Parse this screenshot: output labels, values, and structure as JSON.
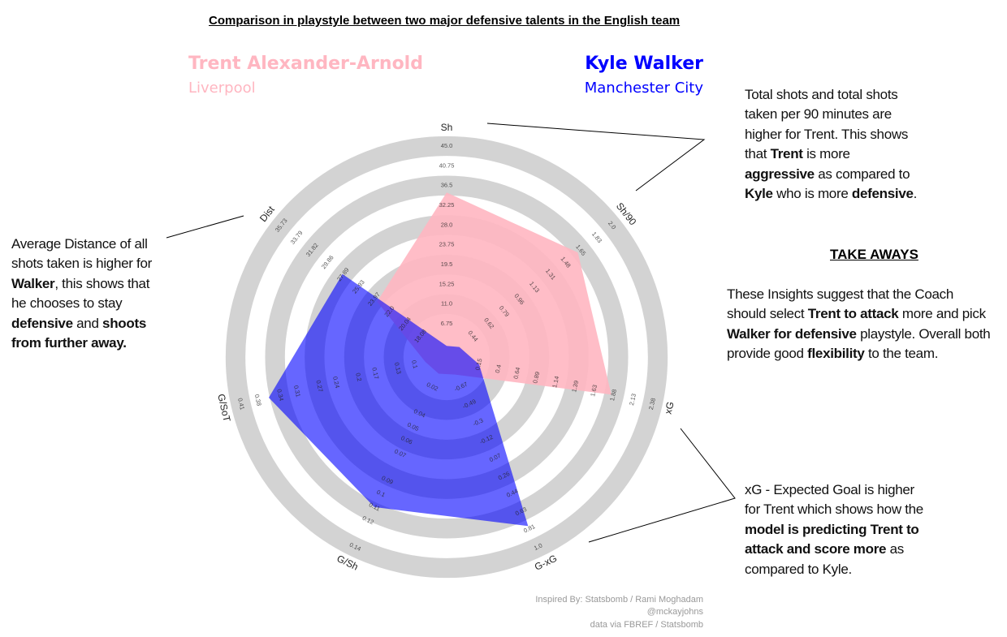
{
  "chart_data": {
    "type": "radar",
    "title": "Comparison in playstyle between two major defensive talents in the English team",
    "categories": [
      "Sh",
      "Sh/90",
      "xG",
      "G-xG",
      "G/Sh",
      "G/SoT",
      "Dist"
    ],
    "ticks": [
      [
        6.75,
        {
          "value": 11,
          "label": "11.0"
        },
        15.25,
        19.5,
        23.75,
        {
          "value": 28,
          "label": "28.0"
        },
        32.25,
        36.5,
        40.75,
        {
          "value": 45,
          "label": "45.0"
        }
      ],
      [
        0.44,
        0.62,
        0.79,
        0.96,
        1.13,
        1.31,
        1.48,
        1.65,
        1.83,
        {
          "value": 2,
          "label": "2.0"
        }
      ],
      [
        0.15,
        0.4,
        0.64,
        0.89,
        1.14,
        1.39,
        1.63,
        1.88,
        2.13,
        2.38
      ],
      [
        -0.67,
        -0.49,
        -0.3,
        -0.12,
        0.07,
        0.26,
        0.44,
        0.63,
        0.81,
        {
          "value": 1,
          "label": "1.0"
        }
      ],
      [
        0.02,
        0.04,
        0.05,
        0.06,
        0.07,
        0.09,
        0.1,
        0.11,
        0.12,
        0.14
      ],
      [
        0.1,
        0.13,
        0.17,
        0.2,
        0.24,
        0.27,
        0.31,
        0.34,
        0.38,
        0.41
      ],
      [
        18.08,
        20.04,
        {
          "value": 22,
          "label": "22.0"
        },
        23.97,
        25.93,
        27.89,
        29.86,
        31.82,
        33.79,
        35.73
      ]
    ],
    "series": [
      {
        "name": "Trent Alexander-Arnold",
        "team": "Liverpool",
        "color": "#ffb6c1",
        "values": [
          35,
          1.62,
          1.85,
          -0.8,
          0.01,
          0.08,
          23.6
        ]
      },
      {
        "name": "Kyle Walker",
        "team": "Manchester City",
        "color": "#0000ff",
        "values": [
          2,
          0.29,
          0.15,
          0.78,
          0.11,
          0.36,
          28
        ]
      }
    ],
    "credits": [
      "Inspired By: Statsbomb / Rami Moghadam",
      "@mckayjohns",
      "data via FBREF / Statsbomb"
    ]
  },
  "annotations": [
    {
      "segments": [
        {
          "text": "Total shots and total shots taken per 90 minutes are higher for Trent. This shows that "
        },
        {
          "text": "Trent",
          "bold": true
        },
        {
          "text": " is more "
        },
        {
          "text": "aggressive",
          "bold": true
        },
        {
          "text": " as compared to "
        },
        {
          "text": "Kyle",
          "bold": true
        },
        {
          "text": " who is more "
        },
        {
          "text": "defensive",
          "bold": true
        },
        {
          "text": "."
        }
      ]
    },
    {
      "segments": [
        {
          "text": "These Insights suggest that the Coach should select "
        },
        {
          "text": "Trent to attack",
          "bold": true
        },
        {
          "text": " more and pick "
        },
        {
          "text": "Walker for defensive",
          "bold": true
        },
        {
          "text": " playstyle. Overall both provide good "
        },
        {
          "text": "flexibility",
          "bold": true
        },
        {
          "text": " to the team."
        }
      ]
    },
    {
      "segments": [
        {
          "text": "Average Distance of all shots taken is higher for "
        },
        {
          "text": "Walker",
          "bold": true
        },
        {
          "text": ", this shows that he chooses to stay "
        },
        {
          "text": "defensive",
          "bold": true
        },
        {
          "text": " and "
        },
        {
          "text": "shoots from further away.",
          "bold": true
        }
      ]
    },
    {
      "segments": [
        {
          "text": "xG - Expected Goal is higher for Trent which shows how the "
        },
        {
          "text": "model is predicting Trent to attack and score more",
          "bold": true
        },
        {
          "text": "  as compared to Kyle."
        }
      ]
    }
  ],
  "takeaways_heading": "TAKE AWAYS"
}
